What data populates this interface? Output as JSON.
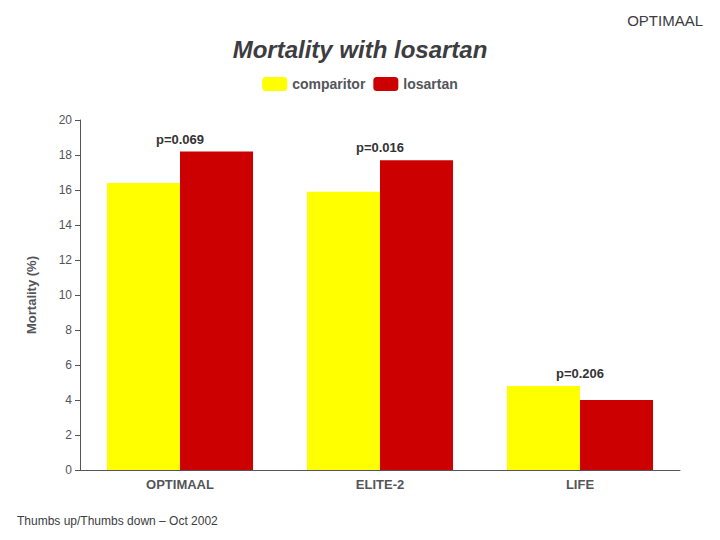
{
  "chart_data": {
    "type": "bar",
    "title": "Mortality with losartan",
    "header": "OPTIMAAL",
    "subtitle": "Thumbs up/Thumbs down – Oct 2002",
    "categories": [
      "OPTIMAAL",
      "ELITE-2",
      "LIFE"
    ],
    "series": [
      {
        "name": "comparitor",
        "color": "#FFFF00",
        "values": [
          16.4,
          15.9,
          4.8
        ]
      },
      {
        "name": "losartan",
        "color": "#CC0000",
        "values": [
          18.2,
          17.7,
          4.0
        ]
      }
    ],
    "ylabel": "Mortality (%)",
    "ylim": [
      0,
      20
    ],
    "yticks": [
      0,
      2,
      4,
      6,
      8,
      10,
      12,
      14,
      16,
      18,
      20
    ],
    "grid": false,
    "legend": "top",
    "annotations": [
      {
        "text": "p=0.069",
        "x": "OPTIMAAL"
      },
      {
        "text": "p=0.016",
        "x": "ELITE-2"
      },
      {
        "text": "p=0.206",
        "x": "LIFE"
      }
    ]
  }
}
